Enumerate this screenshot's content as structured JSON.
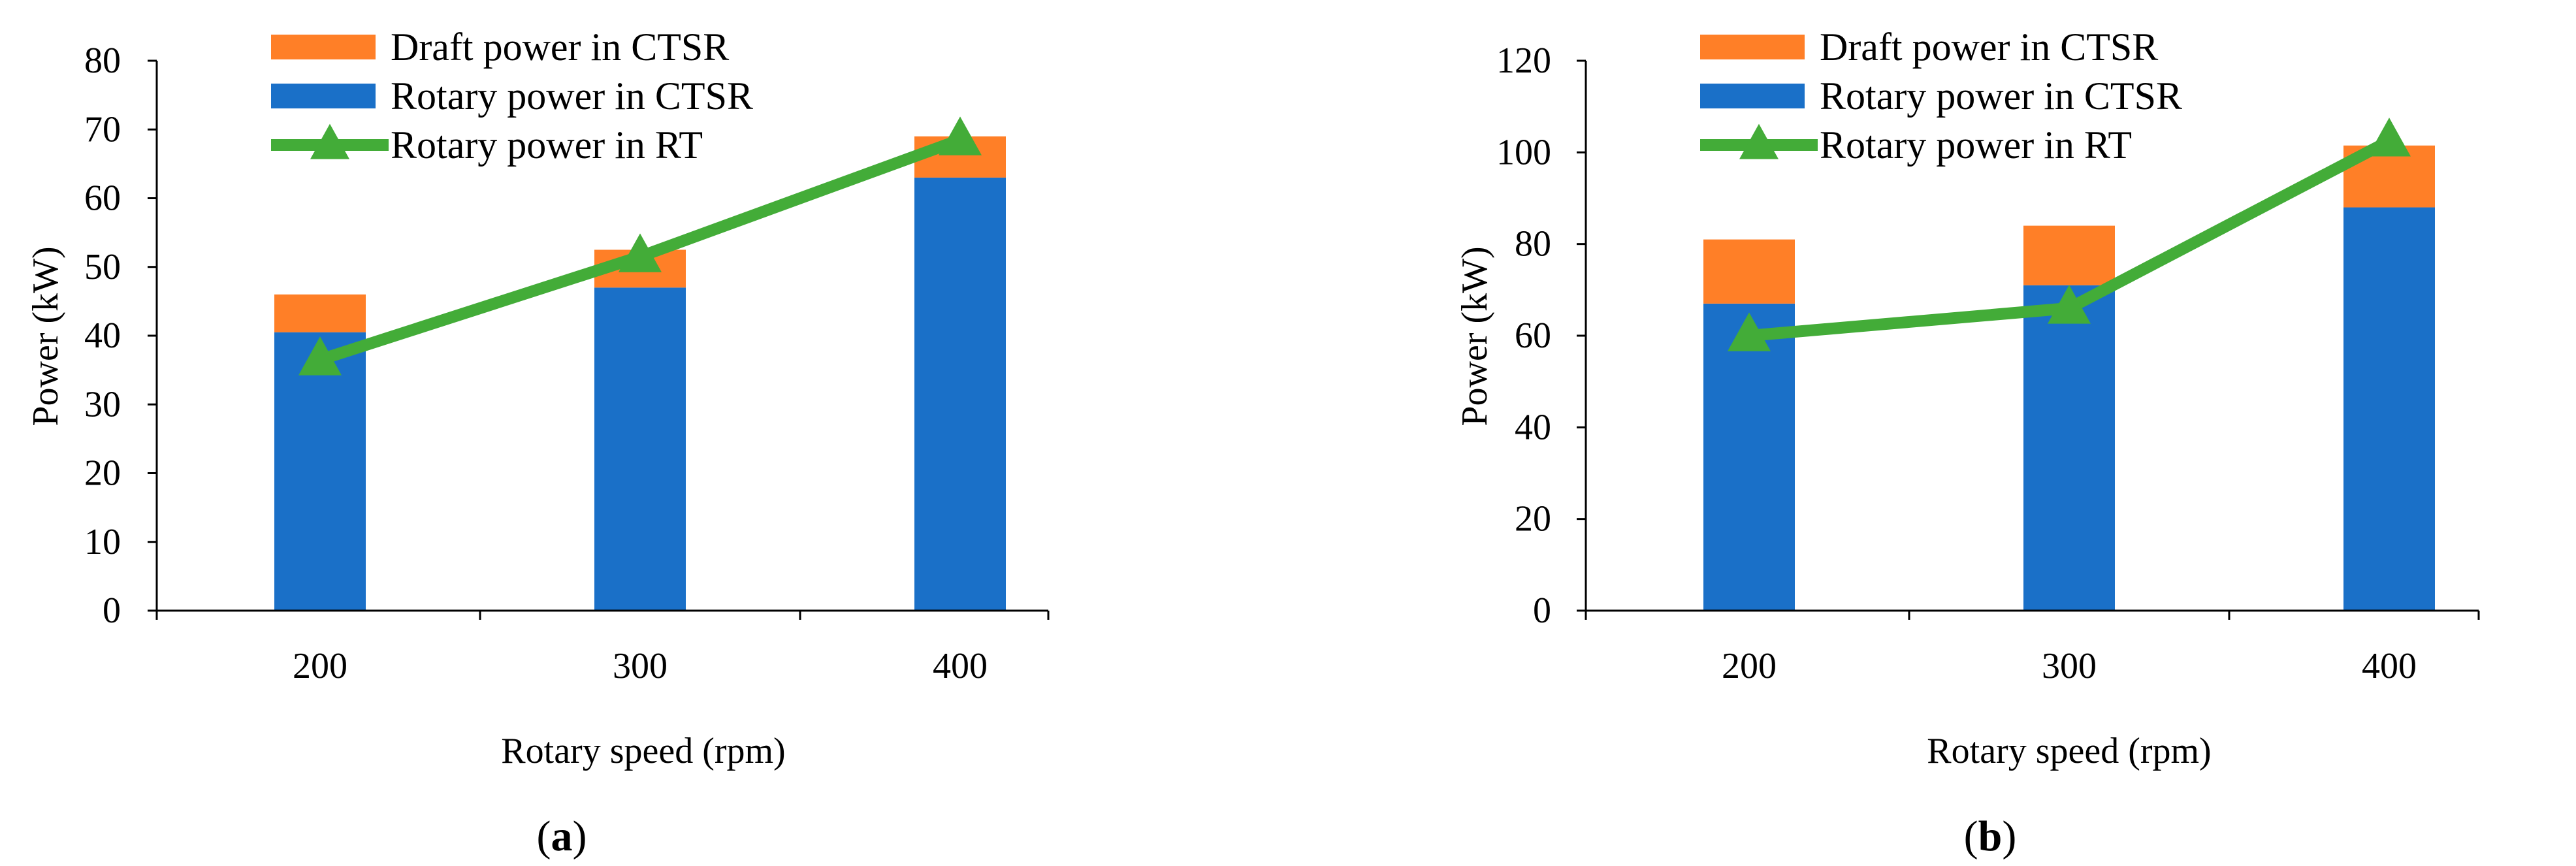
{
  "colors": {
    "draft": "#FF7F27",
    "rotary_ctsr": "#1A70C8",
    "rotary_rt": "#43AC38",
    "axis": "#000000"
  },
  "chart_data": [
    {
      "id": "a",
      "type": "bar",
      "stacked": true,
      "panel_label": "a",
      "categories": [
        "200",
        "300",
        "400"
      ],
      "series": [
        {
          "name": "Rotary power in CTSR",
          "kind": "bar",
          "color_key": "rotary_ctsr",
          "values": [
            40.5,
            47,
            63
          ]
        },
        {
          "name": "Draft power in CTSR",
          "kind": "bar",
          "color_key": "draft",
          "values": [
            5.5,
            5.5,
            6
          ]
        },
        {
          "name": "Rotary power in RT",
          "kind": "line",
          "marker": "triangle",
          "color_key": "rotary_rt",
          "values": [
            36.5,
            51.5,
            68.5
          ]
        }
      ],
      "legend_order": [
        "Draft power in CTSR",
        "Rotary power in CTSR",
        "Rotary power in RT"
      ],
      "legend_position": "top-left",
      "xlabel": "Rotary speed (rpm)",
      "ylabel": "Power (kW)",
      "ylim": [
        0,
        80
      ],
      "yticks": [
        0,
        10,
        20,
        30,
        40,
        50,
        60,
        70,
        80
      ],
      "grid": false
    },
    {
      "id": "b",
      "type": "bar",
      "stacked": true,
      "panel_label": "b",
      "categories": [
        "200",
        "300",
        "400"
      ],
      "series": [
        {
          "name": "Rotary power in CTSR",
          "kind": "bar",
          "color_key": "rotary_ctsr",
          "values": [
            67,
            71,
            88
          ]
        },
        {
          "name": "Draft power in CTSR",
          "kind": "bar",
          "color_key": "draft",
          "values": [
            14,
            13,
            13.5
          ]
        },
        {
          "name": "Rotary power in RT",
          "kind": "line",
          "marker": "triangle",
          "color_key": "rotary_rt",
          "values": [
            60,
            66,
            102.5
          ]
        }
      ],
      "legend_order": [
        "Draft power in CTSR",
        "Rotary power in CTSR",
        "Rotary power in RT"
      ],
      "legend_position": "top-left",
      "xlabel": "Rotary speed (rpm)",
      "ylabel": "Power (kW)",
      "ylim": [
        0,
        120
      ],
      "yticks": [
        0,
        20,
        40,
        60,
        80,
        100,
        120
      ],
      "grid": false
    }
  ]
}
